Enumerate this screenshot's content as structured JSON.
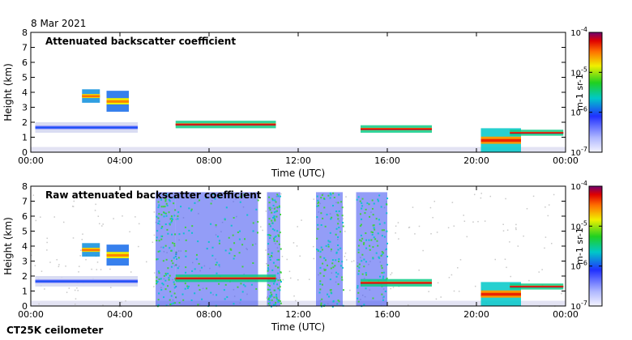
{
  "header": {
    "date": "8 Mar 2021"
  },
  "footer": {
    "instrument": "CT25K ceilometer"
  },
  "chart_data": [
    {
      "type": "heatmap",
      "title": "Attenuated backscatter coefficient",
      "xlabel": "Time (UTC)",
      "ylabel": "Height (km)",
      "xticks": [
        "00:00",
        "04:00",
        "08:00",
        "12:00",
        "16:00",
        "20:00",
        "00:00"
      ],
      "xlim_hours": [
        0,
        24
      ],
      "ylim": [
        0,
        8
      ],
      "yticks": [
        "0",
        "1",
        "2",
        "3",
        "4",
        "5",
        "6",
        "7",
        "8"
      ],
      "colorbar": {
        "label": "m-1 sr-1",
        "ticks": [
          "10-7",
          "10-6",
          "10-5",
          "10-4"
        ],
        "scale": "log"
      },
      "features": [
        {
          "name": "residual layer aerosol",
          "t": [
            0.2,
            4.8
          ],
          "z": [
            1.3,
            2.0
          ],
          "level": 0.25
        },
        {
          "name": "elevated cloud",
          "t": [
            2.3,
            3.1
          ],
          "z": [
            3.3,
            4.2
          ],
          "level": 0.75
        },
        {
          "name": "elevated cloud",
          "t": [
            3.4,
            4.4
          ],
          "z": [
            2.7,
            4.1
          ],
          "level": 0.72
        },
        {
          "name": "cloud base",
          "t": [
            6.5,
            11.0
          ],
          "z": [
            1.6,
            2.1
          ],
          "level": 0.85
        },
        {
          "name": "cloud base",
          "t": [
            14.8,
            18.0
          ],
          "z": [
            1.3,
            1.8
          ],
          "level": 0.85
        },
        {
          "name": "fog / low cloud",
          "t": [
            20.2,
            22.0
          ],
          "z": [
            0.0,
            1.6
          ],
          "level": 0.8
        },
        {
          "name": "cloud base",
          "t": [
            21.5,
            23.9
          ],
          "z": [
            1.1,
            1.5
          ],
          "level": 0.85
        }
      ],
      "fill_ratio": 1.0
    },
    {
      "type": "heatmap",
      "title": "Raw attenuated backscatter coefficient",
      "xlabel": "Time (UTC)",
      "ylabel": "Height (km)",
      "xticks": [
        "00:00",
        "04:00",
        "08:00",
        "12:00",
        "16:00",
        "20:00",
        "00:00"
      ],
      "xlim_hours": [
        0,
        24
      ],
      "ylim": [
        0,
        8
      ],
      "yticks": [
        "0",
        "1",
        "2",
        "3",
        "4",
        "5",
        "6",
        "7",
        "8"
      ],
      "colorbar": {
        "label": "m-1 sr-1",
        "ticks": [
          "10-7",
          "10-6",
          "10-5",
          "10-4"
        ],
        "scale": "log"
      },
      "features": [
        {
          "name": "residual layer aerosol",
          "t": [
            0.2,
            4.8
          ],
          "z": [
            1.3,
            2.0
          ],
          "level": 0.25
        },
        {
          "name": "elevated cloud",
          "t": [
            2.3,
            3.1
          ],
          "z": [
            3.3,
            4.2
          ],
          "level": 0.75
        },
        {
          "name": "elevated cloud",
          "t": [
            3.4,
            4.4
          ],
          "z": [
            2.7,
            4.1
          ],
          "level": 0.72
        },
        {
          "name": "cloud base",
          "t": [
            6.5,
            11.0
          ],
          "z": [
            1.6,
            2.1
          ],
          "level": 0.85
        },
        {
          "name": "cloud base",
          "t": [
            14.8,
            18.0
          ],
          "z": [
            1.3,
            1.8
          ],
          "level": 0.85
        },
        {
          "name": "fog / low cloud",
          "t": [
            20.2,
            22.0
          ],
          "z": [
            0.0,
            1.6
          ],
          "level": 0.8
        },
        {
          "name": "cloud base",
          "t": [
            21.5,
            23.9
          ],
          "z": [
            1.1,
            1.5
          ],
          "level": 0.85
        }
      ],
      "noise_bands_hours": [
        [
          5.6,
          6.5
        ],
        [
          6.5,
          10.2
        ],
        [
          10.6,
          11.2
        ],
        [
          12.8,
          14.0
        ],
        [
          14.6,
          16.0
        ]
      ],
      "fill_ratio": 1.0
    }
  ]
}
